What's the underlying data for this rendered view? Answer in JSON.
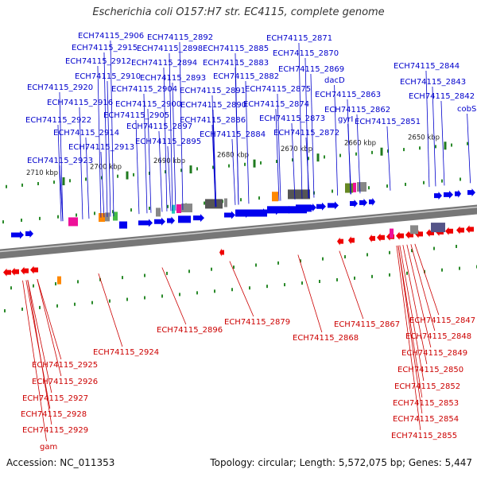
{
  "title": "Escherichia coli O157:H7 str. EC4115, complete genome",
  "footer": {
    "accession": "Accession: NC_011353",
    "summary": "Topology: circular; Length: 5,572,075 bp; Genes: 5,447"
  },
  "colors": {
    "forward_gene": "#0000ee",
    "reverse_gene": "#ee0000",
    "forward_label": "#0000cc",
    "reverse_label": "#cc0000",
    "backbone": "#777777",
    "tick": "#2a8a2a",
    "misc_gray": "#888888",
    "misc_dark": "#555555",
    "magenta": "#ee1199",
    "orange": "#ff8800",
    "green": "#44bb44",
    "teal": "#22ccbb",
    "olive": "#668822",
    "slate": "#555588"
  },
  "scale_labels": [
    "2710 kbp",
    "2700 kbp",
    "2690 kbp",
    "2680 kbp",
    "2670 kbp",
    "2660 kbp",
    "2650 kbp"
  ],
  "forward_labels": [
    "ECH74115_2906",
    "ECH74115_2892",
    "ECH74115_2871",
    "ECH74115_2915",
    "ECH74115_2898",
    "ECH74115_2885",
    "ECH74115_2870",
    "ECH74115_2912",
    "ECH74115_2894",
    "ECH74115_2883",
    "ECH74115_2869",
    "ECH74115_2844",
    "ECH74115_2910",
    "ECH74115_2893",
    "ECH74115_2882",
    "dacD",
    "ECH74115_2843",
    "ECH74115_2920",
    "ECH74115_2904",
    "ECH74115_2891",
    "ECH74115_2875",
    "ECH74115_2863",
    "ECH74115_2842",
    "ECH74115_2916",
    "ECH74115_2900",
    "ECH74115_2890",
    "ECH74115_2874",
    "ECH74115_2862",
    "cobS",
    "ECH74115_2905",
    "ECH74115_2922",
    "ECH74115_2886",
    "ECH74115_2873",
    "gyrI",
    "ECH74115_2851",
    "ECH74115_2914",
    "ECH74115_2897",
    "ECH74115_2884",
    "ECH74115_2872",
    "ECH74115_2913",
    "ECH74115_2895",
    "ECH74115_2923"
  ],
  "reverse_labels": [
    "ECH74115_2896",
    "ECH74115_2879",
    "ECH74115_2867",
    "ECH74115_2868",
    "ECH74115_2924",
    "ECH74115_2847",
    "ECH74115_2848",
    "ECH74115_2849",
    "ECH74115_2850",
    "ECH74115_2852",
    "ECH74115_2853",
    "ECH74115_2854",
    "ECH74115_2855",
    "ECH74115_2925",
    "ECH74115_2926",
    "ECH74115_2927",
    "ECH74115_2928",
    "ECH74115_2929",
    "gam"
  ]
}
